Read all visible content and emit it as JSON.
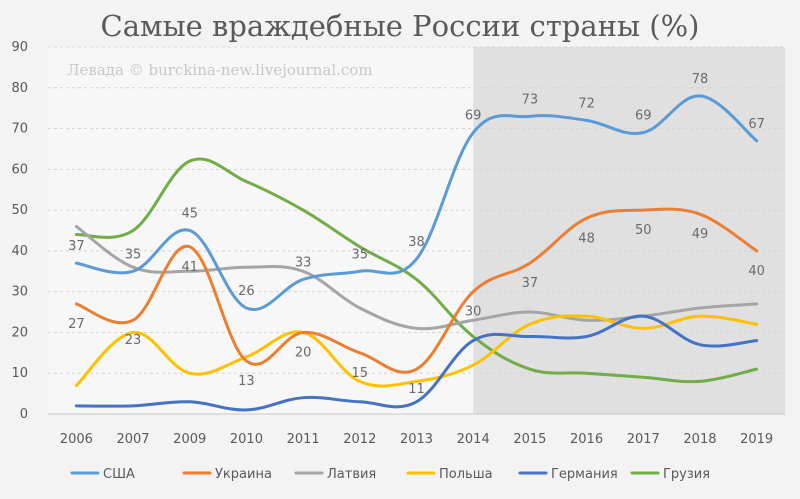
{
  "title": "Самые враждебные России страны (%)",
  "watermark": "Левада © burckina-new.livejournal.com",
  "chart_data": {
    "type": "line",
    "title": "Самые враждебные России страны (%)",
    "xlabel": "",
    "ylabel": "",
    "categories": [
      "2006",
      "2007",
      "2009",
      "2010",
      "2011",
      "2012",
      "2013",
      "2014",
      "2015",
      "2016",
      "2017",
      "2018",
      "2019"
    ],
    "ylim": [
      0,
      90
    ],
    "yticks": [
      0,
      10,
      20,
      30,
      40,
      50,
      60,
      70,
      80,
      90
    ],
    "grid": true,
    "legend_position": "bottom",
    "shaded_from_category": "2014",
    "series": [
      {
        "name": "США",
        "color": "#5b9bd5",
        "values": [
          37,
          35,
          45,
          26,
          33,
          35,
          38,
          69,
          73,
          72,
          69,
          78,
          67
        ]
      },
      {
        "name": "Украина",
        "color": "#ed7d31",
        "values": [
          27,
          23,
          41,
          13,
          20,
          15,
          11,
          30,
          37,
          48,
          50,
          49,
          40
        ]
      },
      {
        "name": "Латвия",
        "color": "#a5a5a5",
        "values": [
          46,
          36,
          35,
          36,
          35,
          26,
          21,
          23,
          25,
          23,
          24,
          26,
          27
        ]
      },
      {
        "name": "Польша",
        "color": "#ffc000",
        "values": [
          7,
          20,
          10,
          14,
          20,
          8,
          8,
          12,
          22,
          24,
          21,
          24,
          22
        ]
      },
      {
        "name": "Германия",
        "color": "#4472c4",
        "values": [
          2,
          2,
          3,
          1,
          4,
          3,
          3,
          18,
          19,
          19,
          24,
          17,
          18
        ]
      },
      {
        "name": "Грузия",
        "color": "#70ad47",
        "values": [
          44,
          45,
          62,
          57,
          50,
          41,
          33,
          19,
          11,
          10,
          9,
          8,
          11
        ]
      }
    ],
    "data_labels": [
      {
        "series": "США",
        "category": "2006",
        "text": "37"
      },
      {
        "series": "США",
        "category": "2007",
        "text": "35"
      },
      {
        "series": "США",
        "category": "2009",
        "text": "45"
      },
      {
        "series": "США",
        "category": "2010",
        "text": "26"
      },
      {
        "series": "США",
        "category": "2011",
        "text": "33"
      },
      {
        "series": "США",
        "category": "2012",
        "text": "35"
      },
      {
        "series": "США",
        "category": "2013",
        "text": "38"
      },
      {
        "series": "США",
        "category": "2014",
        "text": "69"
      },
      {
        "series": "США",
        "category": "2015",
        "text": "73"
      },
      {
        "series": "США",
        "category": "2016",
        "text": "72"
      },
      {
        "series": "США",
        "category": "2017",
        "text": "69"
      },
      {
        "series": "США",
        "category": "2018",
        "text": "78"
      },
      {
        "series": "США",
        "category": "2019",
        "text": "67"
      },
      {
        "series": "Украина",
        "category": "2006",
        "text": "27"
      },
      {
        "series": "Украина",
        "category": "2007",
        "text": "23"
      },
      {
        "series": "Украина",
        "category": "2009",
        "text": "41"
      },
      {
        "series": "Украина",
        "category": "2010",
        "text": "13"
      },
      {
        "series": "Украина",
        "category": "2011",
        "text": "20"
      },
      {
        "series": "Украина",
        "category": "2012",
        "text": "15"
      },
      {
        "series": "Украина",
        "category": "2013",
        "text": "11"
      },
      {
        "series": "Украина",
        "category": "2014",
        "text": "30"
      },
      {
        "series": "Украина",
        "category": "2015",
        "text": "37"
      },
      {
        "series": "Украина",
        "category": "2016",
        "text": "48"
      },
      {
        "series": "Украина",
        "category": "2017",
        "text": "50"
      },
      {
        "series": "Украина",
        "category": "2018",
        "text": "49"
      },
      {
        "series": "Украина",
        "category": "2019",
        "text": "40"
      }
    ]
  }
}
